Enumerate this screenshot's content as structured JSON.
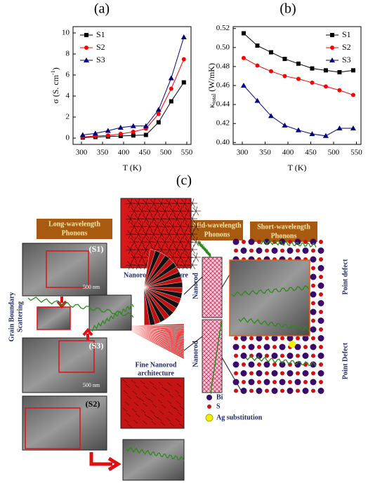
{
  "chart_data": [
    {
      "type": "line",
      "panel": "(a)",
      "xlabel": "T (K)",
      "ylabel": [
        "σ (S. cm",
        "-1",
        ")"
      ],
      "xlim": [
        280,
        560
      ],
      "xticks": [
        300,
        350,
        400,
        450,
        500,
        550
      ],
      "ylim": [
        -0.6,
        10.6
      ],
      "yticks": [
        0,
        2,
        4,
        6,
        8,
        10
      ],
      "legend": "upper-left",
      "x": [
        303,
        333,
        363,
        393,
        423,
        453,
        483,
        513,
        543
      ],
      "series": [
        {
          "name": "S1",
          "color": "#000000",
          "marker": "square",
          "values": [
            0.05,
            0.1,
            0.15,
            0.2,
            0.25,
            0.3,
            1.5,
            3.5,
            5.3
          ]
        },
        {
          "name": "S2",
          "color": "#ff0000",
          "marker": "circle",
          "values": [
            0.1,
            0.2,
            0.25,
            0.4,
            0.6,
            0.9,
            2.3,
            4.7,
            7.5
          ]
        },
        {
          "name": "S3",
          "color": "#000080",
          "marker": "triangle",
          "values": [
            0.3,
            0.45,
            0.7,
            1.0,
            1.15,
            1.15,
            2.7,
            5.7,
            9.6
          ]
        }
      ]
    },
    {
      "type": "line",
      "panel": "(b)",
      "xlabel": "T (K)",
      "ylabel": [
        "κ",
        "total",
        " (W/mK)"
      ],
      "xlim": [
        280,
        560
      ],
      "xticks": [
        300,
        350,
        400,
        450,
        500,
        550
      ],
      "ylim": [
        0.398,
        0.522
      ],
      "yticks": [
        {
          "value": 0.4,
          "label": "0.40"
        },
        0.42,
        0.44,
        0.46,
        0.48,
        {
          "value": 0.5,
          "label": "0.50"
        },
        0.52
      ],
      "legend": "upper-right",
      "x": [
        303,
        333,
        363,
        393,
        423,
        453,
        483,
        513,
        543
      ],
      "series": [
        {
          "name": "S1",
          "color": "#000000",
          "marker": "square",
          "values": [
            0.515,
            0.502,
            0.495,
            0.488,
            0.483,
            0.478,
            0.476,
            0.474,
            0.476
          ]
        },
        {
          "name": "S2",
          "color": "#ff0000",
          "marker": "circle",
          "values": [
            0.489,
            0.481,
            0.475,
            0.47,
            0.467,
            0.463,
            0.459,
            0.455,
            0.45
          ]
        },
        {
          "name": "S3",
          "color": "#000080",
          "marker": "triangle",
          "values": [
            0.46,
            0.444,
            0.428,
            0.418,
            0.413,
            0.409,
            0.407,
            0.415,
            0.415
          ]
        }
      ]
    }
  ],
  "diagram": {
    "panel": "(c)",
    "long": [
      "Long-wavelength",
      "Phonons"
    ],
    "mid": [
      "Mid-wavelength",
      "Phonons"
    ],
    "short": [
      "Short-wavelength",
      "Phonons"
    ],
    "nanorod": "Nanorod architecture",
    "fine": [
      "Fine Nanorod",
      "architecture"
    ],
    "grain": [
      "Grain Boundary",
      "Scattering"
    ],
    "s1": "(S1)",
    "s3": "(S3)",
    "s2": "(S2)",
    "scale": "500 nm",
    "rod": "Nanorod",
    "pd1": "Point defect",
    "pd2": "Point Defect",
    "bi": "Bi",
    "s": "S",
    "ag": "Ag  substitution"
  }
}
